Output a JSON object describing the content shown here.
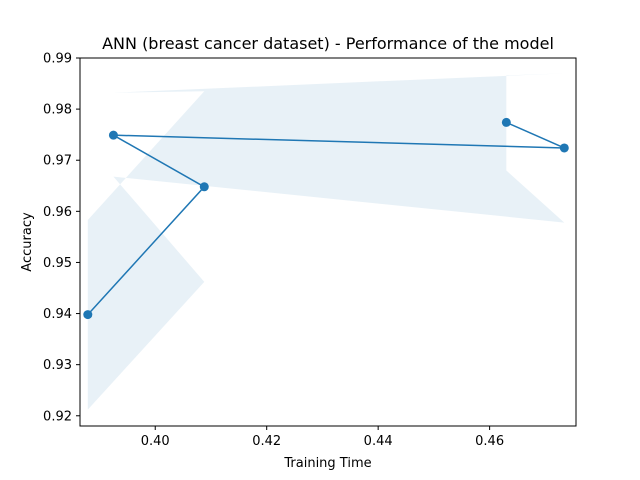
{
  "chart_data": {
    "type": "line",
    "title": "ANN (breast cancer dataset) - Performance of the model",
    "xlabel": "Training Time",
    "ylabel": "Accuracy",
    "xlim": [
      0.3865,
      0.4755
    ],
    "ylim": [
      0.918,
      0.99
    ],
    "xticks": [
      0.4,
      0.42,
      0.44,
      0.46
    ],
    "xtick_labels": [
      "0.40",
      "0.42",
      "0.44",
      "0.46"
    ],
    "yticks": [
      0.92,
      0.93,
      0.94,
      0.95,
      0.96,
      0.97,
      0.98,
      0.99
    ],
    "ytick_labels": [
      "0.92",
      "0.93",
      "0.94",
      "0.95",
      "0.96",
      "0.97",
      "0.98",
      "0.99"
    ],
    "grid": false,
    "series": [
      {
        "color": "#1f77b4",
        "marker": "circle",
        "x": [
          0.3879,
          0.4088,
          0.3925,
          0.4734,
          0.463
        ],
        "y": [
          0.9398,
          0.9648,
          0.9749,
          0.9724,
          0.9774
        ]
      }
    ],
    "confidence_band": {
      "color": "#1f77b4",
      "opacity": 0.1,
      "x": [
        0.3879,
        0.4088,
        0.3925,
        0.4734,
        0.463
      ],
      "lower": [
        0.9212,
        0.9462,
        0.9668,
        0.9578,
        0.968
      ],
      "upper": [
        0.9583,
        0.9835,
        0.9832,
        0.987,
        0.9866
      ]
    }
  }
}
